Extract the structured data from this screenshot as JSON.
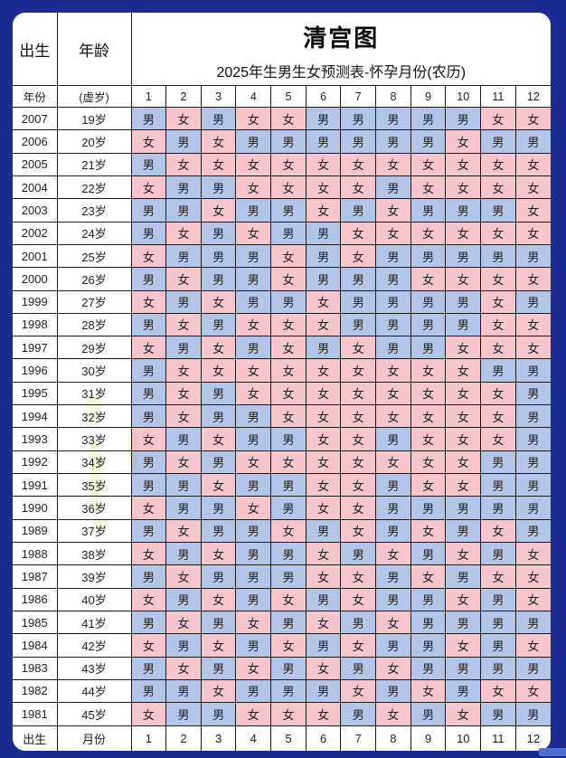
{
  "header": {
    "col_birth": "出生",
    "col_age": "年龄",
    "title": "清宫图",
    "subtitle": "2025年生男生女预测表-怀孕月份(农历)"
  },
  "subheader": {
    "year_label": "年份",
    "age_label": "(虚岁)",
    "months": [
      "1",
      "2",
      "3",
      "4",
      "5",
      "6",
      "7",
      "8",
      "9",
      "10",
      "11",
      "12"
    ]
  },
  "legend": {
    "male_char": "男",
    "female_char": "女"
  },
  "rows": [
    {
      "year": "2007",
      "age": "19岁",
      "months": [
        "男",
        "女",
        "男",
        "女",
        "女",
        "男",
        "男",
        "男",
        "男",
        "男",
        "女",
        "女"
      ]
    },
    {
      "year": "2006",
      "age": "20岁",
      "months": [
        "女",
        "男",
        "女",
        "男",
        "男",
        "男",
        "男",
        "男",
        "男",
        "女",
        "男",
        "男"
      ]
    },
    {
      "year": "2005",
      "age": "21岁",
      "months": [
        "男",
        "女",
        "女",
        "女",
        "女",
        "女",
        "女",
        "女",
        "女",
        "女",
        "女",
        "女"
      ]
    },
    {
      "year": "2004",
      "age": "22岁",
      "months": [
        "女",
        "男",
        "男",
        "女",
        "女",
        "女",
        "女",
        "男",
        "女",
        "女",
        "女",
        "女"
      ]
    },
    {
      "year": "2003",
      "age": "23岁",
      "months": [
        "男",
        "男",
        "女",
        "男",
        "男",
        "女",
        "男",
        "女",
        "男",
        "男",
        "男",
        "女"
      ]
    },
    {
      "year": "2002",
      "age": "24岁",
      "months": [
        "男",
        "女",
        "男",
        "女",
        "男",
        "男",
        "女",
        "女",
        "女",
        "女",
        "女",
        "女"
      ]
    },
    {
      "year": "2001",
      "age": "25岁",
      "months": [
        "女",
        "男",
        "男",
        "男",
        "女",
        "男",
        "女",
        "男",
        "男",
        "男",
        "男",
        "男"
      ]
    },
    {
      "year": "2000",
      "age": "26岁",
      "months": [
        "男",
        "女",
        "男",
        "男",
        "女",
        "男",
        "男",
        "男",
        "女",
        "女",
        "女",
        "女"
      ]
    },
    {
      "year": "1999",
      "age": "27岁",
      "months": [
        "女",
        "男",
        "女",
        "男",
        "男",
        "女",
        "男",
        "男",
        "男",
        "男",
        "女",
        "男"
      ]
    },
    {
      "year": "1998",
      "age": "28岁",
      "months": [
        "男",
        "女",
        "男",
        "女",
        "女",
        "女",
        "男",
        "男",
        "男",
        "男",
        "女",
        "女"
      ]
    },
    {
      "year": "1997",
      "age": "29岁",
      "months": [
        "女",
        "男",
        "女",
        "男",
        "女",
        "男",
        "女",
        "男",
        "男",
        "女",
        "女",
        "女"
      ]
    },
    {
      "year": "1996",
      "age": "30岁",
      "months": [
        "男",
        "女",
        "女",
        "女",
        "女",
        "女",
        "女",
        "女",
        "女",
        "女",
        "男",
        "男"
      ]
    },
    {
      "year": "1995",
      "age": "31岁",
      "months": [
        "男",
        "女",
        "男",
        "女",
        "女",
        "女",
        "女",
        "女",
        "女",
        "女",
        "女",
        "男"
      ]
    },
    {
      "year": "1994",
      "age": "32岁",
      "months": [
        "男",
        "女",
        "男",
        "男",
        "女",
        "女",
        "女",
        "女",
        "女",
        "女",
        "女",
        "男"
      ]
    },
    {
      "year": "1993",
      "age": "33岁",
      "months": [
        "女",
        "男",
        "女",
        "男",
        "男",
        "女",
        "女",
        "男",
        "女",
        "女",
        "女",
        "男"
      ]
    },
    {
      "year": "1992",
      "age": "34岁",
      "months": [
        "男",
        "女",
        "男",
        "女",
        "女",
        "女",
        "女",
        "女",
        "女",
        "女",
        "男",
        "男"
      ]
    },
    {
      "year": "1991",
      "age": "35岁",
      "months": [
        "男",
        "男",
        "女",
        "男",
        "男",
        "女",
        "女",
        "男",
        "女",
        "女",
        "男",
        "男"
      ]
    },
    {
      "year": "1990",
      "age": "36岁",
      "months": [
        "女",
        "男",
        "男",
        "女",
        "男",
        "女",
        "女",
        "男",
        "男",
        "男",
        "男",
        "男"
      ]
    },
    {
      "year": "1989",
      "age": "37岁",
      "months": [
        "男",
        "女",
        "男",
        "男",
        "女",
        "男",
        "女",
        "男",
        "女",
        "男",
        "女",
        "男"
      ]
    },
    {
      "year": "1988",
      "age": "38岁",
      "months": [
        "女",
        "男",
        "女",
        "男",
        "男",
        "女",
        "男",
        "女",
        "男",
        "女",
        "男",
        "女"
      ]
    },
    {
      "year": "1987",
      "age": "39岁",
      "months": [
        "男",
        "女",
        "男",
        "男",
        "男",
        "女",
        "女",
        "男",
        "女",
        "男",
        "女",
        "女"
      ]
    },
    {
      "year": "1986",
      "age": "40岁",
      "months": [
        "女",
        "男",
        "女",
        "男",
        "女",
        "男",
        "女",
        "男",
        "男",
        "女",
        "男",
        "女"
      ]
    },
    {
      "year": "1985",
      "age": "41岁",
      "months": [
        "男",
        "女",
        "男",
        "女",
        "男",
        "女",
        "男",
        "女",
        "男",
        "男",
        "男",
        "男"
      ]
    },
    {
      "year": "1984",
      "age": "42岁",
      "months": [
        "女",
        "男",
        "女",
        "男",
        "女",
        "男",
        "女",
        "男",
        "男",
        "女",
        "男",
        "女"
      ]
    },
    {
      "year": "1983",
      "age": "43岁",
      "months": [
        "男",
        "女",
        "男",
        "女",
        "男",
        "女",
        "男",
        "女",
        "男",
        "男",
        "男",
        "男"
      ]
    },
    {
      "year": "1982",
      "age": "44岁",
      "months": [
        "男",
        "男",
        "女",
        "男",
        "男",
        "男",
        "女",
        "男",
        "女",
        "男",
        "女",
        "女"
      ]
    },
    {
      "year": "1981",
      "age": "45岁",
      "months": [
        "女",
        "男",
        "男",
        "女",
        "女",
        "女",
        "男",
        "女",
        "男",
        "女",
        "男",
        "男"
      ]
    }
  ],
  "footer": {
    "birth_label": "出生",
    "month_label": "月份",
    "months": [
      "1",
      "2",
      "3",
      "4",
      "5",
      "6",
      "7",
      "8",
      "9",
      "10",
      "11",
      "12"
    ]
  },
  "colors": {
    "background": "#1b2b92",
    "male_cell": "#b4c6e7",
    "female_cell": "#f7c5cc",
    "grid_line": "#1c1c1c",
    "text": "#1f1f1f"
  }
}
